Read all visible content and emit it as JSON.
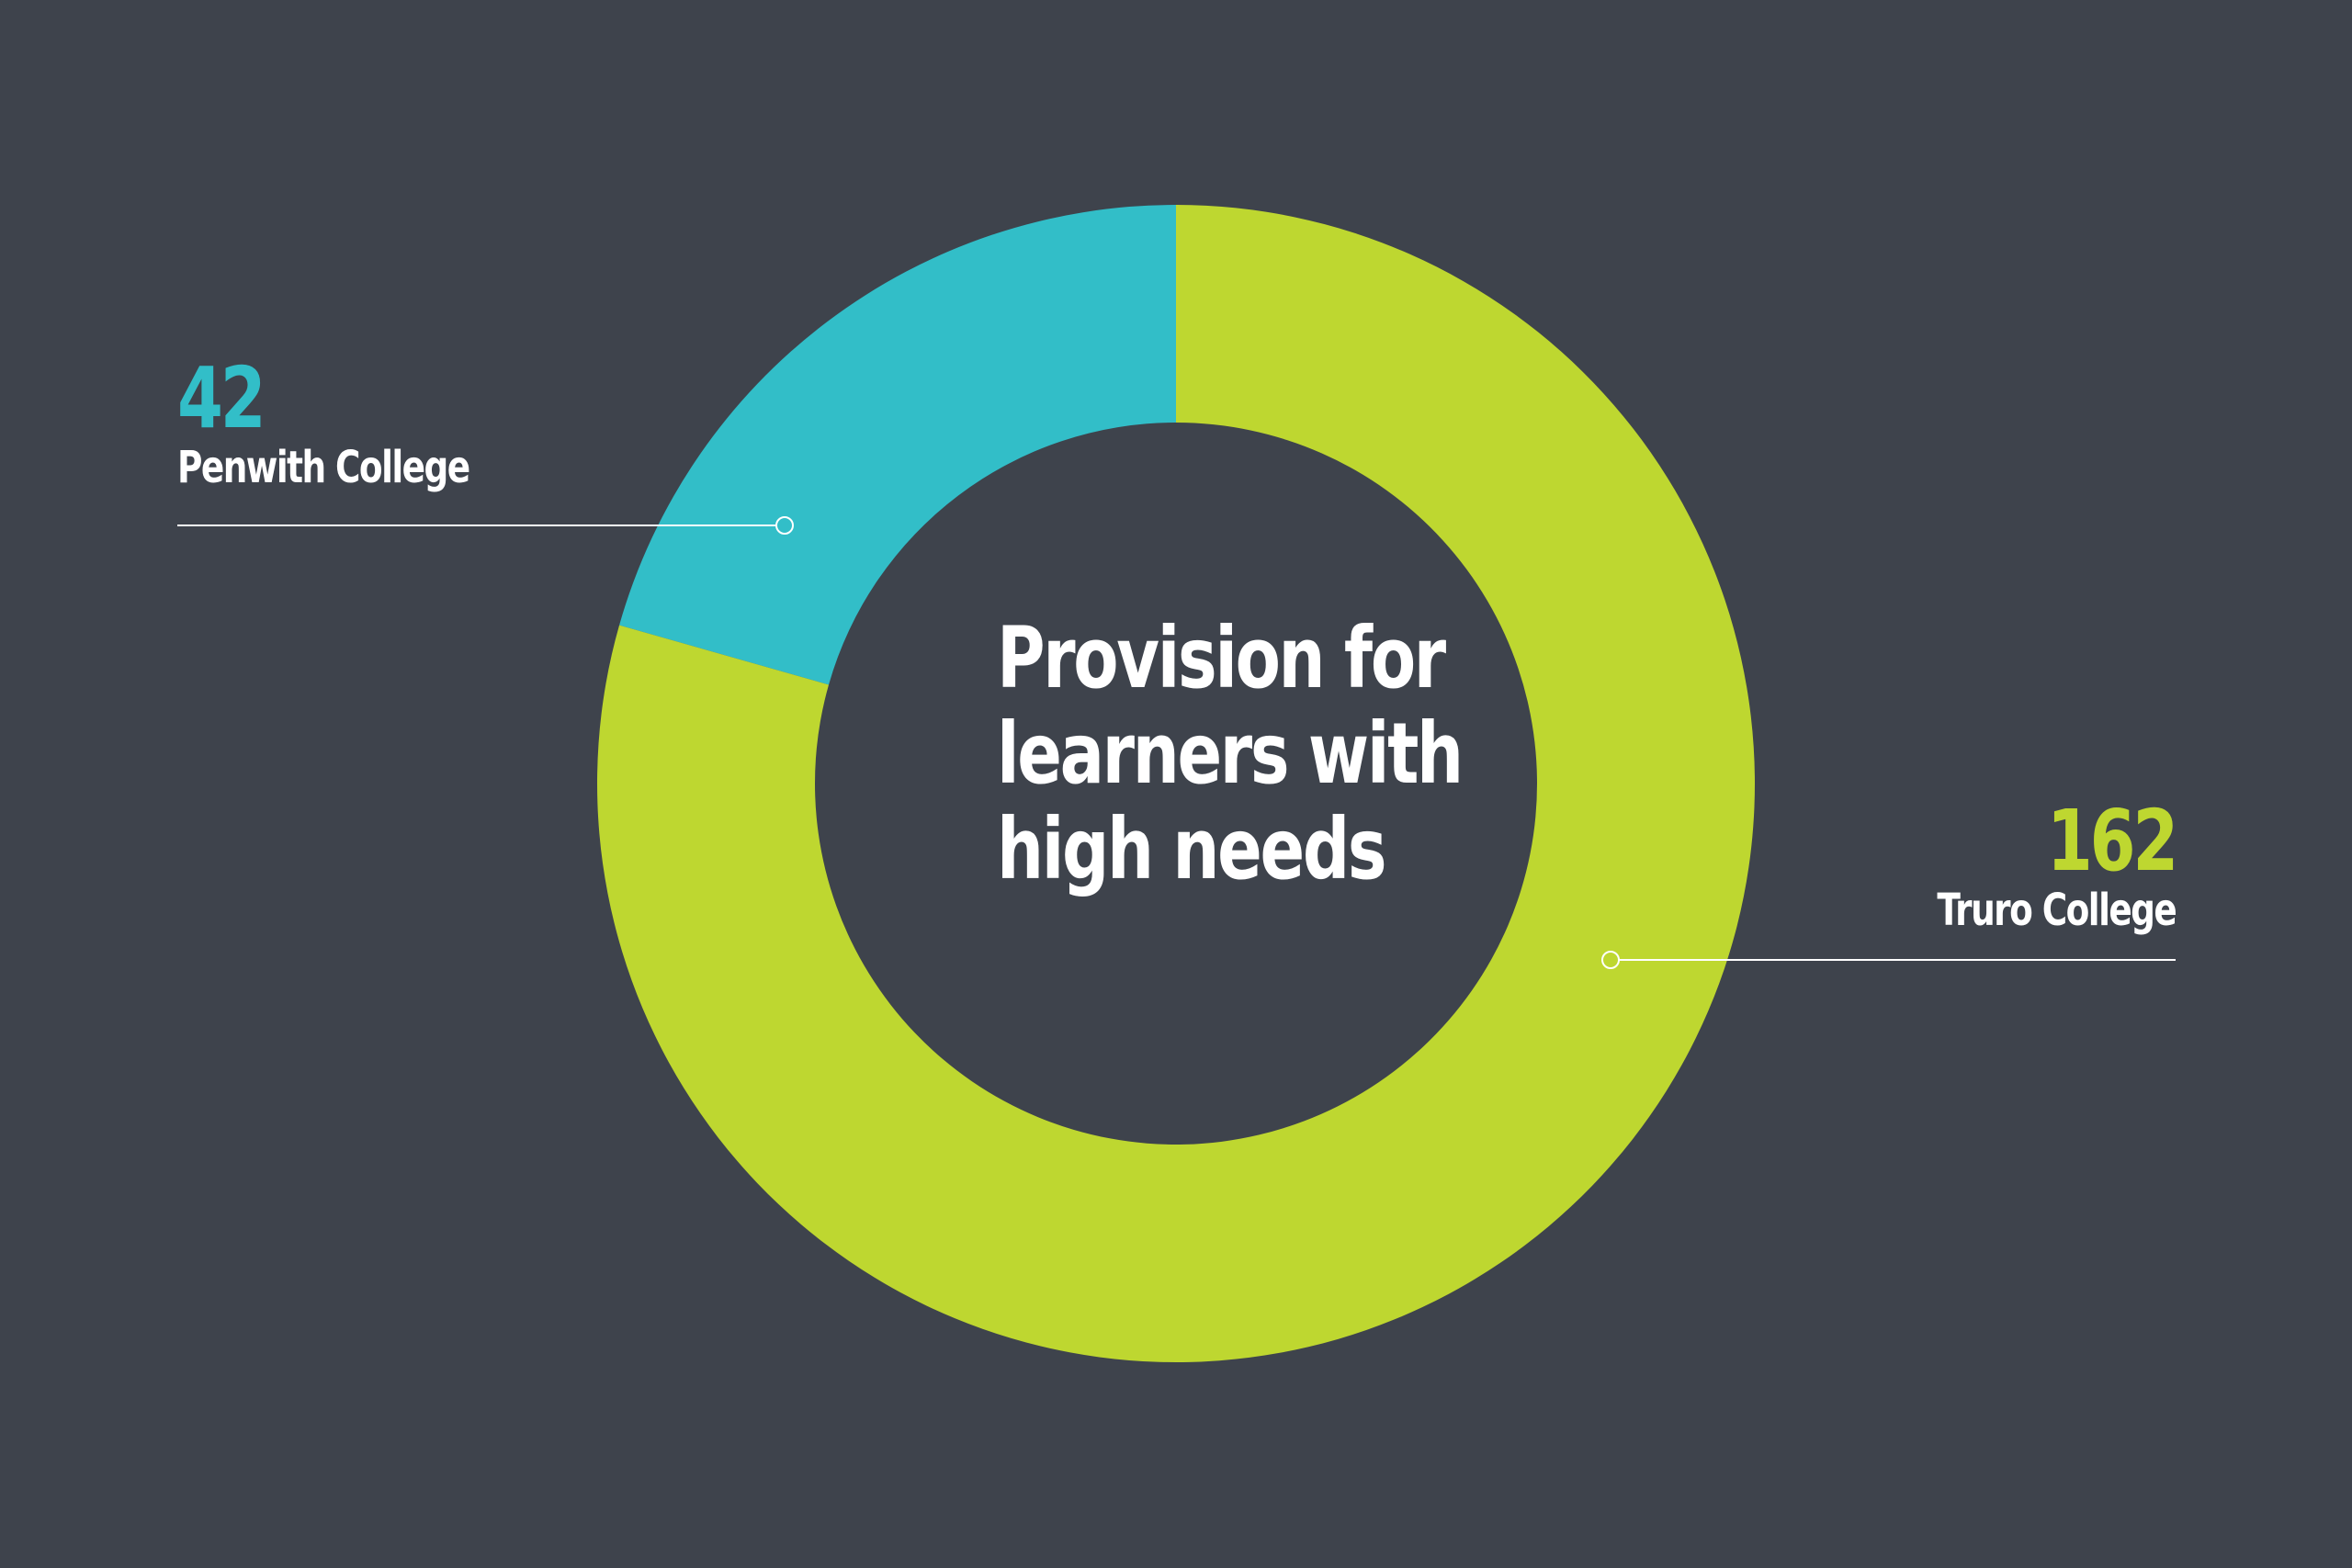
{
  "chart_data": {
    "type": "pie",
    "variant": "donut",
    "title": "Provision for learners with high needs",
    "title_lines": [
      "Provision for",
      "learners with",
      "high needs"
    ],
    "categories": [
      "Penwith College",
      "Truro College"
    ],
    "values": [
      42,
      162
    ],
    "series": [
      {
        "name": "Penwith College",
        "value": 42,
        "color": "#32bec8"
      },
      {
        "name": "Truro College",
        "value": 162,
        "color": "#bed730"
      }
    ],
    "legend": "none",
    "labels": "outside-leader-lines"
  },
  "colors": {
    "background": "#3e434c",
    "penwith": "#32bec8",
    "truro": "#bed730",
    "text": "#ffffff",
    "leader_line": "#ffffff"
  }
}
